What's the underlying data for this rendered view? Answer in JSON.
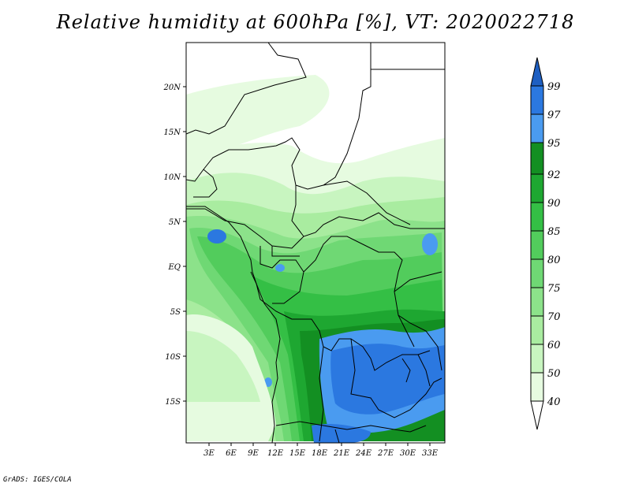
{
  "title": "Relative humidity at 600hPa [%], VT: 2020022718",
  "credit": "GrADS: IGES/COLA",
  "map": {
    "lat_labels": [
      "20N",
      "15N",
      "10N",
      "5N",
      "EQ",
      "5S",
      "10S",
      "15S"
    ],
    "lon_labels": [
      "3E",
      "6E",
      "9E",
      "12E",
      "15E",
      "18E",
      "21E",
      "24E",
      "27E",
      "30E",
      "33E"
    ]
  },
  "colorbar": {
    "levels": [
      "40",
      "50",
      "60",
      "70",
      "75",
      "80",
      "85",
      "90",
      "92",
      "95",
      "97",
      "99"
    ],
    "colors": {
      "lt40": "#ffffff",
      "40_50": "#e6fbe0",
      "50_60": "#c8f5c0",
      "60_70": "#a9eca0",
      "70_75": "#8ce28a",
      "75_80": "#6fd874",
      "80_85": "#52cc5c",
      "85_90": "#34bf45",
      "90_92": "#1ea731",
      "92_95": "#138f22",
      "95_97": "#4a9bf0",
      "97_99": "#2b78e0",
      "gt99": "#1e5fc2"
    }
  }
}
